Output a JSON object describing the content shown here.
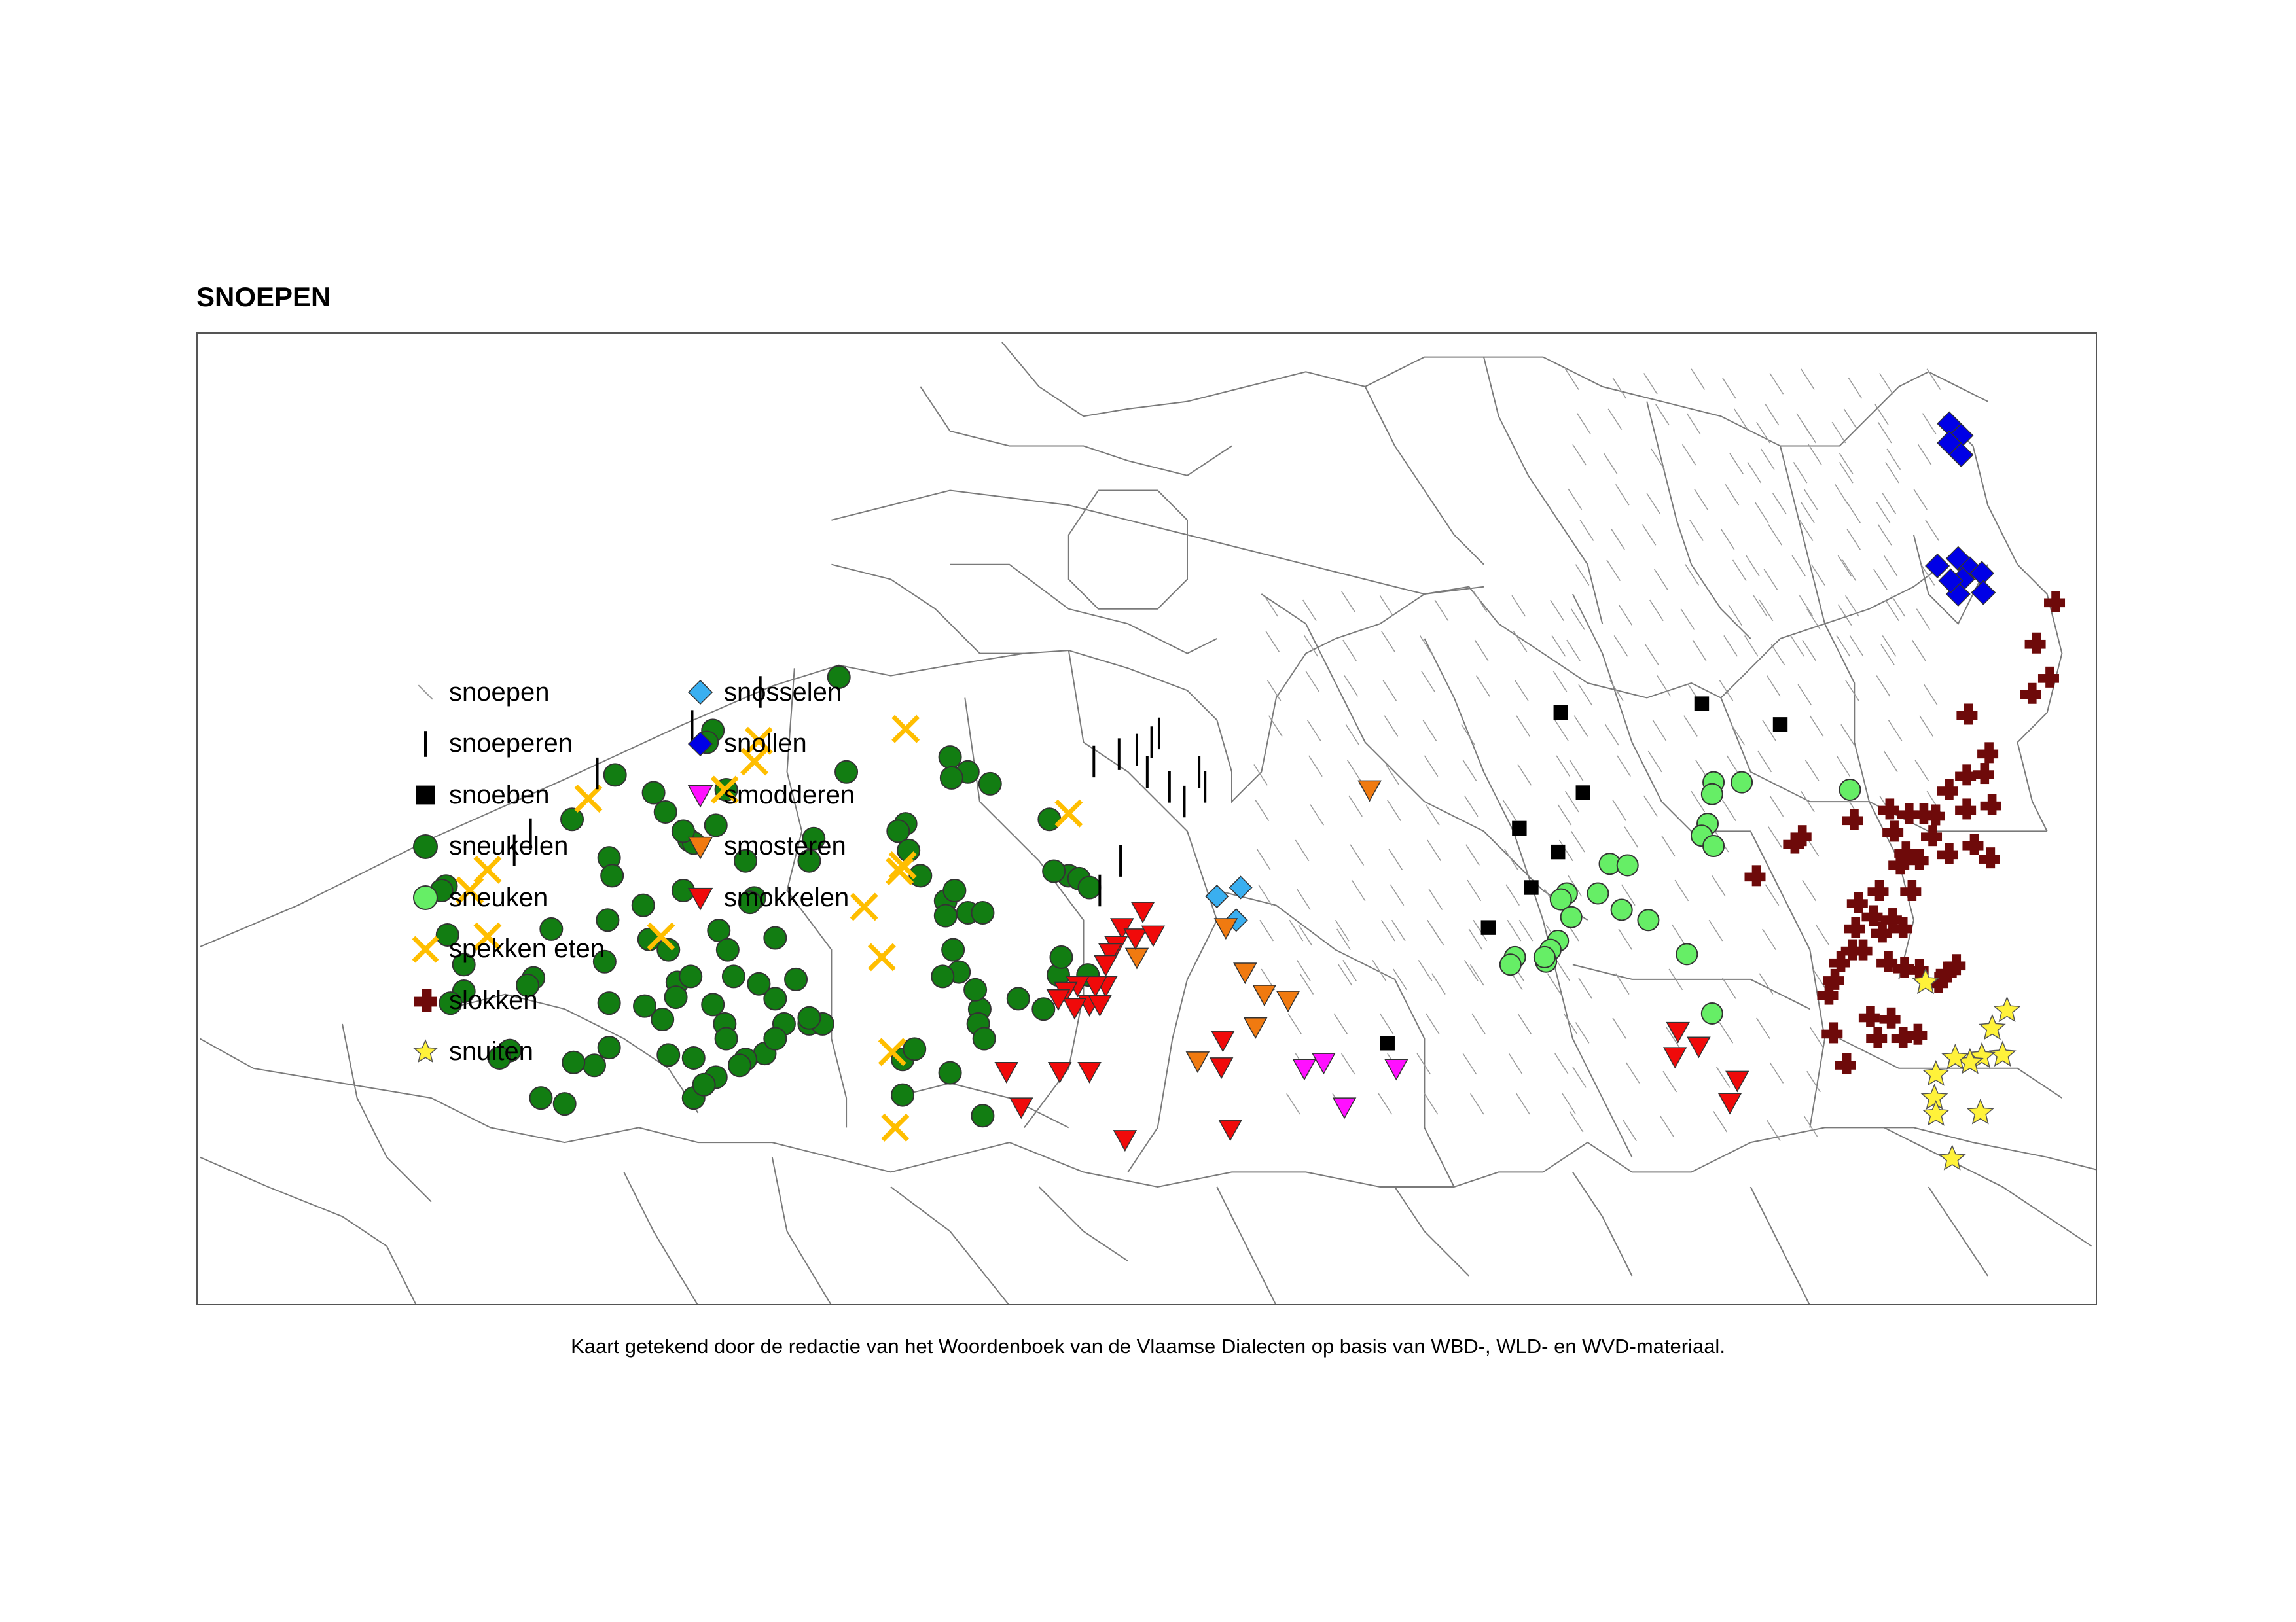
{
  "map": {
    "title": "SNOEPEN",
    "caption": "Kaart getekend door de redactie van het Woordenboek van de Vlaamse Dialecten op basis van WBD-, WLD- en WVD-materiaal."
  },
  "legend": [
    {
      "key": "snoepen",
      "label": "snoepen",
      "symbol": "hatch-line",
      "color": "#9a9a9a"
    },
    {
      "key": "snoeperen",
      "label": "snoeperen",
      "symbol": "vertical-bar",
      "color": "#000000"
    },
    {
      "key": "snoeben",
      "label": "snoeben",
      "symbol": "square",
      "color": "#000000"
    },
    {
      "key": "sneukelen",
      "label": "sneukelen",
      "symbol": "circle",
      "color": "#127d12"
    },
    {
      "key": "sneuken",
      "label": "sneuken",
      "symbol": "circle",
      "color": "#66ee66"
    },
    {
      "key": "spekken-eten",
      "label": "spekken eten",
      "symbol": "x-cross",
      "color": "#ffbe00"
    },
    {
      "key": "slokken",
      "label": "slokken",
      "symbol": "plus",
      "color": "#6e0a0a"
    },
    {
      "key": "snuiten",
      "label": "snuiten",
      "symbol": "star",
      "color": "#fff23a"
    },
    {
      "key": "snosselen",
      "label": "snosselen",
      "symbol": "diamond",
      "color": "#3aaff0"
    },
    {
      "key": "snollen",
      "label": "snollen",
      "symbol": "diamond",
      "color": "#0000e6"
    },
    {
      "key": "smodderen",
      "label": "smodderen",
      "symbol": "triangle-down",
      "color": "#ff10ff"
    },
    {
      "key": "smosteren",
      "label": "smosteren",
      "symbol": "triangle-down",
      "color": "#f07a10"
    },
    {
      "key": "smokkelen",
      "label": "smokkelen",
      "symbol": "triangle-down",
      "color": "#f00a0a"
    }
  ]
}
